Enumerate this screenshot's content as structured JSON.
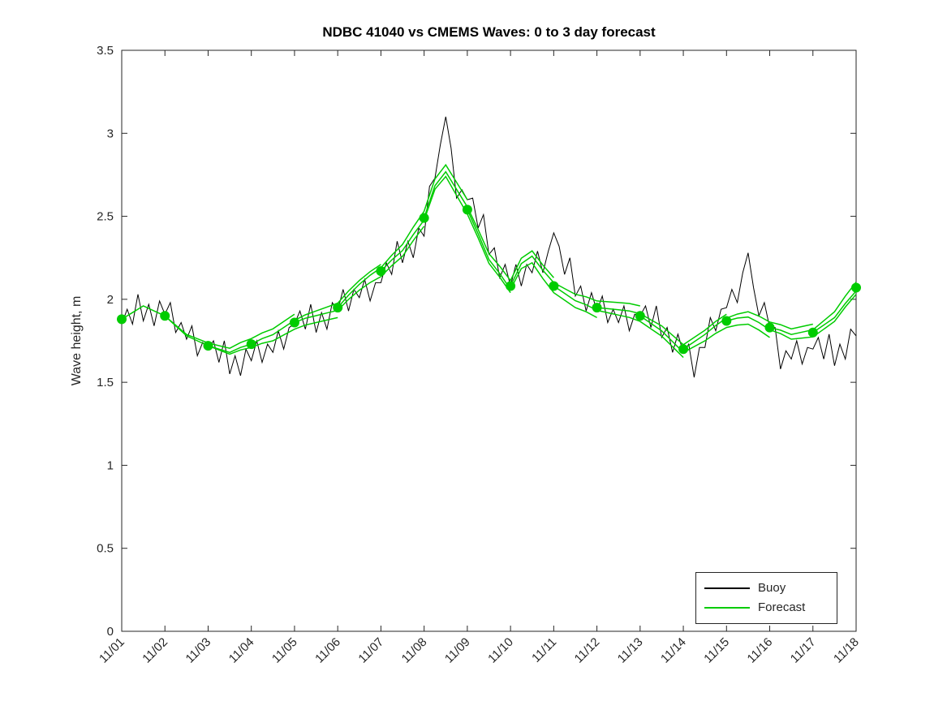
{
  "chart_data": {
    "type": "line",
    "title": "NDBC 41040 vs CMEMS Waves: 0 to 3 day forecast",
    "xlabel": "",
    "ylabel": "Wave height, m",
    "xlim": [
      0,
      17
    ],
    "ylim": [
      0,
      3.5
    ],
    "xticks": [
      0,
      1,
      2,
      3,
      4,
      5,
      6,
      7,
      8,
      9,
      10,
      11,
      12,
      13,
      14,
      15,
      16,
      17
    ],
    "xtick_labels": [
      "11/01",
      "11/02",
      "11/03",
      "11/04",
      "11/05",
      "11/06",
      "11/07",
      "11/08",
      "11/09",
      "11/10",
      "11/11",
      "11/12",
      "11/13",
      "11/14",
      "11/15",
      "11/16",
      "11/17",
      "11/18"
    ],
    "yticks": [
      0,
      0.5,
      1,
      1.5,
      2,
      2.5,
      3,
      3.5
    ],
    "ytick_labels": [
      "0",
      "0.5",
      "1",
      "1.5",
      "2",
      "2.5",
      "3",
      "3.5"
    ],
    "grid": false,
    "legend": {
      "position": "bottom-right",
      "entries": [
        {
          "label": "Buoy",
          "color": "#000000"
        },
        {
          "label": "Forecast",
          "color": "#00cc00"
        }
      ]
    },
    "series": {
      "buoy": {
        "label": "Buoy",
        "color": "#000000",
        "t0": 0,
        "dt": 0.125,
        "values": [
          1.85,
          1.94,
          1.85,
          2.03,
          1.87,
          1.97,
          1.84,
          1.99,
          1.91,
          1.98,
          1.8,
          1.86,
          1.76,
          1.84,
          1.66,
          1.74,
          1.7,
          1.75,
          1.62,
          1.75,
          1.55,
          1.66,
          1.54,
          1.7,
          1.63,
          1.75,
          1.62,
          1.73,
          1.68,
          1.81,
          1.7,
          1.83,
          1.85,
          1.93,
          1.82,
          1.97,
          1.8,
          1.92,
          1.82,
          1.98,
          1.93,
          2.06,
          1.93,
          2.06,
          2.01,
          2.12,
          1.99,
          2.1,
          2.1,
          2.22,
          2.15,
          2.35,
          2.22,
          2.35,
          2.25,
          2.43,
          2.38,
          2.68,
          2.73,
          2.93,
          3.1,
          2.91,
          2.61,
          2.66,
          2.6,
          2.61,
          2.43,
          2.51,
          2.27,
          2.31,
          2.13,
          2.21,
          2.08,
          2.21,
          2.08,
          2.21,
          2.16,
          2.29,
          2.16,
          2.29,
          2.4,
          2.32,
          2.15,
          2.25,
          2.02,
          2.08,
          1.93,
          2.04,
          1.93,
          2.02,
          1.86,
          1.94,
          1.86,
          1.96,
          1.81,
          1.91,
          1.9,
          1.96,
          1.83,
          1.96,
          1.77,
          1.83,
          1.68,
          1.79,
          1.68,
          1.73,
          1.53,
          1.71,
          1.71,
          1.89,
          1.81,
          1.94,
          1.95,
          2.06,
          1.98,
          2.16,
          2.28,
          2.07,
          1.9,
          1.98,
          1.83,
          1.83,
          1.58,
          1.69,
          1.64,
          1.75,
          1.61,
          1.71,
          1.7,
          1.77,
          1.64,
          1.79,
          1.6,
          1.73,
          1.64,
          1.82,
          1.78
        ]
      },
      "forecast": {
        "label": "Forecast",
        "color": "#00cc00",
        "base_curve": {
          "t0": 0,
          "dt": 0.25,
          "values": [
            1.88,
            1.92,
            1.96,
            1.93,
            1.9,
            1.84,
            1.78,
            1.75,
            1.72,
            1.7,
            1.68,
            1.71,
            1.73,
            1.76,
            1.78,
            1.82,
            1.86,
            1.89,
            1.91,
            1.93,
            1.95,
            2.02,
            2.08,
            2.13,
            2.17,
            2.24,
            2.3,
            2.4,
            2.49,
            2.68,
            2.76,
            2.65,
            2.54,
            2.4,
            2.25,
            2.17,
            2.08,
            2.21,
            2.25,
            2.16,
            2.08,
            2.04,
            2.0,
            1.98,
            1.95,
            1.94,
            1.93,
            1.92,
            1.9,
            1.86,
            1.82,
            1.76,
            1.7,
            1.74,
            1.78,
            1.83,
            1.87,
            1.89,
            1.9,
            1.87,
            1.83,
            1.81,
            1.78,
            1.79,
            1.8,
            1.85,
            1.9,
            1.99,
            2.07
          ]
        },
        "run_length_days": 3,
        "runs": [
          {
            "start": 0,
            "amp": 0.0
          },
          {
            "start": 1,
            "amp": 0.05
          },
          {
            "start": 2,
            "amp": -0.06
          },
          {
            "start": 3,
            "amp": 0.04
          },
          {
            "start": 4,
            "amp": -0.05
          },
          {
            "start": 5,
            "amp": 0.06
          },
          {
            "start": 6,
            "amp": -0.04
          },
          {
            "start": 7,
            "amp": 0.05
          },
          {
            "start": 8,
            "amp": -0.06
          },
          {
            "start": 9,
            "amp": 0.06
          },
          {
            "start": 10,
            "amp": -0.05
          },
          {
            "start": 11,
            "amp": 0.04
          },
          {
            "start": 12,
            "amp": -0.06
          },
          {
            "start": 13,
            "amp": 0.05
          },
          {
            "start": 14,
            "amp": -0.04
          },
          {
            "start": 15,
            "amp": 0.05
          },
          {
            "start": 16,
            "amp": -0.06
          }
        ],
        "analysis_dots": {
          "t": [
            0,
            1,
            2,
            3,
            4,
            5,
            6,
            7,
            8,
            9,
            10,
            11,
            12,
            13,
            14,
            15,
            16,
            17
          ],
          "values": [
            1.88,
            1.9,
            1.72,
            1.73,
            1.86,
            1.95,
            2.17,
            2.49,
            2.54,
            2.08,
            2.08,
            1.95,
            1.9,
            1.7,
            1.87,
            1.83,
            1.8,
            2.07
          ]
        }
      }
    }
  }
}
